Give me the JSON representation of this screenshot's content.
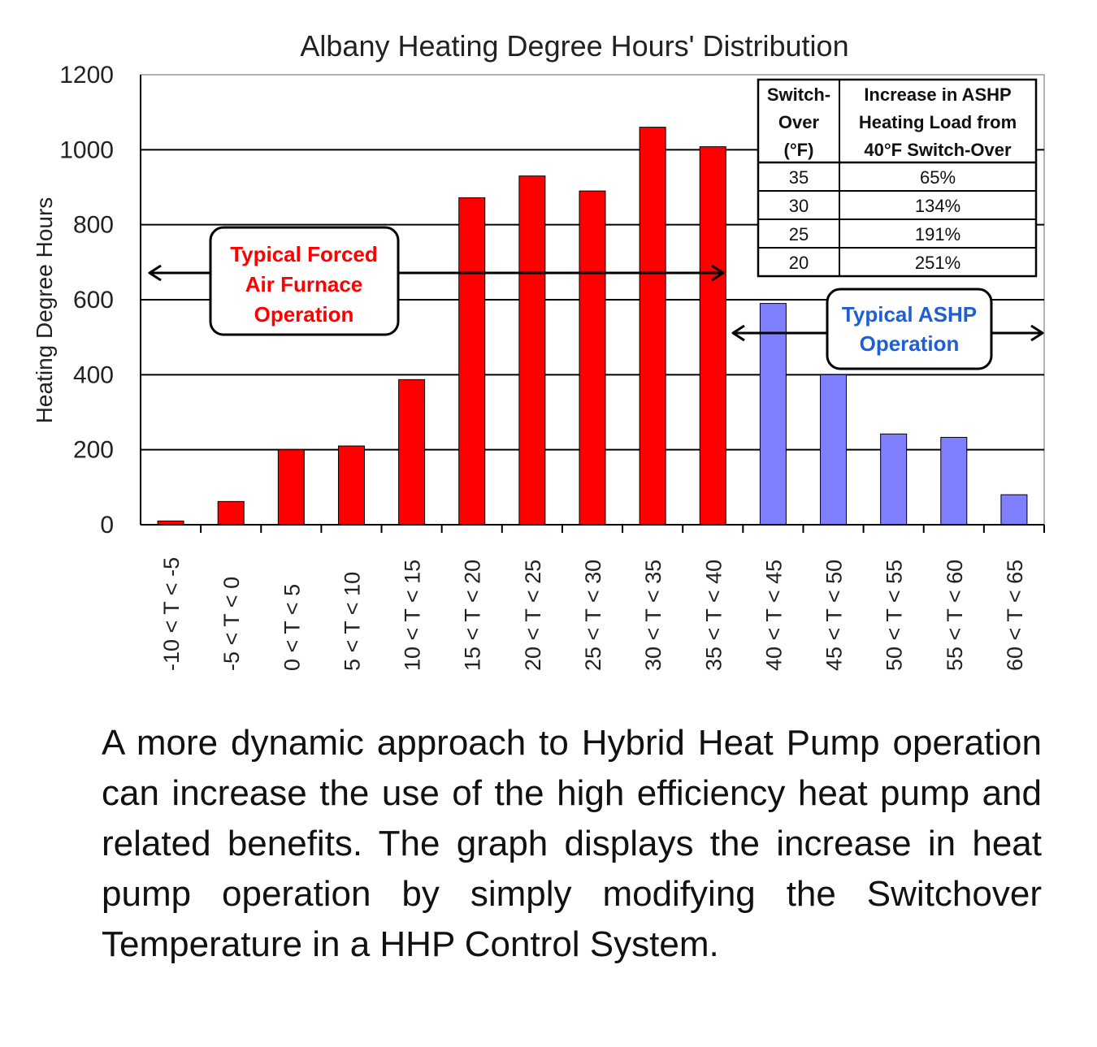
{
  "chart_data": {
    "type": "bar",
    "title": "Albany Heating Degree Hours' Distribution",
    "xlabel": "",
    "ylabel": "Heating Degree Hours",
    "ylim": [
      0,
      1200
    ],
    "yticks": [
      0,
      200,
      400,
      600,
      800,
      1000,
      1200
    ],
    "grid": true,
    "categories": [
      "-10 < T < -5",
      "-5 < T < 0",
      "0 < T < 5",
      "5 < T < 10",
      "10 < T < 15",
      "15 < T < 20",
      "20 < T < 25",
      "25 < T < 30",
      "30 < T < 35",
      "35 < T < 40",
      "40 < T < 45",
      "45 < T < 50",
      "50 < T < 55",
      "55 < T < 60",
      "60 < T < 65"
    ],
    "values": [
      10,
      62,
      200,
      210,
      387,
      872,
      930,
      890,
      1060,
      1008,
      590,
      400,
      242,
      233,
      80
    ],
    "bar_colors": [
      "#ff0000",
      "#ff0000",
      "#ff0000",
      "#ff0000",
      "#ff0000",
      "#ff0000",
      "#ff0000",
      "#ff0000",
      "#ff0000",
      "#ff0000",
      "#8080ff",
      "#8080ff",
      "#8080ff",
      "#8080ff",
      "#8080ff"
    ],
    "annotations": {
      "furnace": {
        "lines": [
          "Typical Forced",
          "Air Furnace",
          "Operation"
        ],
        "color": "#ff0000"
      },
      "ashp": {
        "lines": [
          "Typical ASHP",
          "Operation"
        ],
        "color": "#1f5fd6"
      }
    },
    "inset_table": {
      "header": [
        [
          "Switch-",
          "Over",
          "(°F)"
        ],
        [
          "Increase in ASHP",
          "Heating Load from",
          "40°F Switch-Over"
        ]
      ],
      "rows": [
        [
          "35",
          "65%"
        ],
        [
          "30",
          "134%"
        ],
        [
          "25",
          "191%"
        ],
        [
          "20",
          "251%"
        ]
      ]
    }
  },
  "caption": "A more dynamic approach to Hybrid Heat Pump operation can increase the use of the high efficiency heat pump and related benefits.  The graph displays the increase in heat pump operation by simply modifying the Switchover Temperature in a HHP Control System."
}
